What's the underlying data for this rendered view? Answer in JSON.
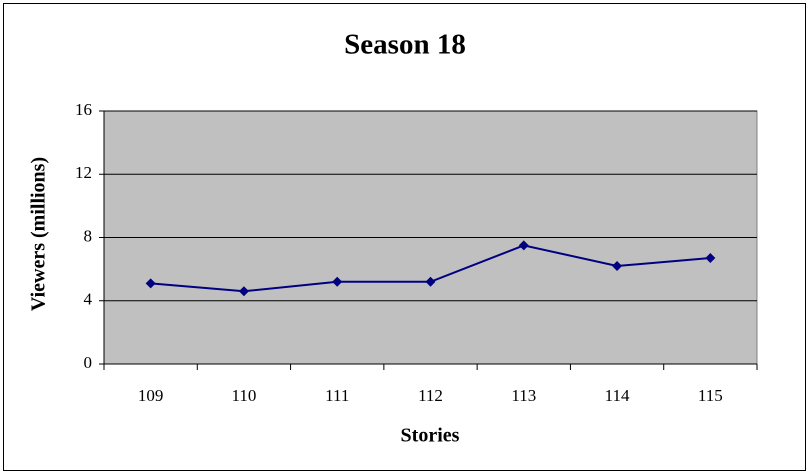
{
  "chart_data": {
    "type": "line",
    "title": "Season 18",
    "x_label": "Stories",
    "y_label": "Viewers (millions)",
    "categories": [
      "109",
      "110",
      "111",
      "112",
      "113",
      "114",
      "115"
    ],
    "values": [
      5.1,
      4.6,
      5.2,
      5.2,
      7.5,
      6.2,
      6.7
    ],
    "color": "#000080",
    "ylim": [
      0,
      16
    ],
    "yticks": [
      0,
      4,
      8,
      12,
      16
    ],
    "grid": true
  }
}
